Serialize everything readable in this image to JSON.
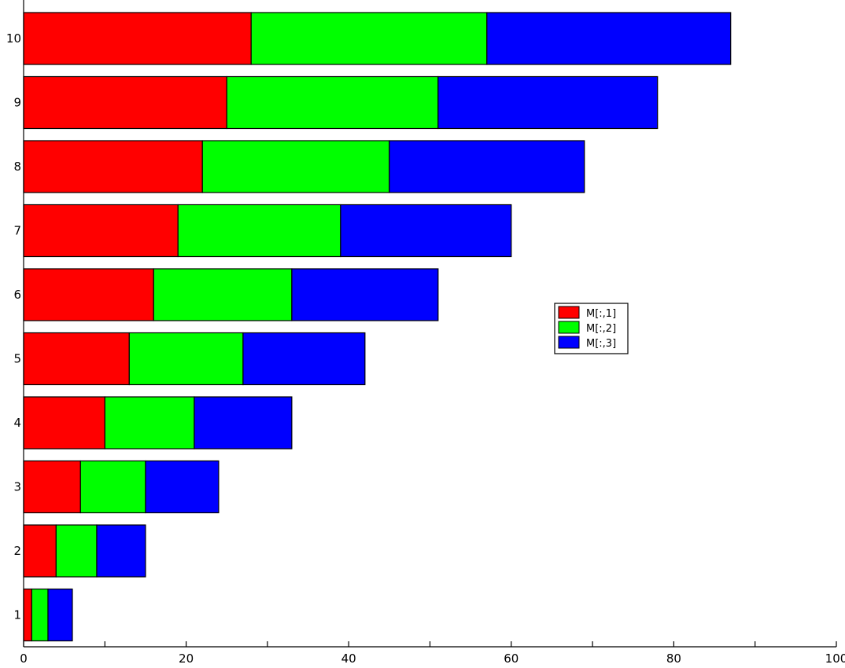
{
  "chart_data": {
    "type": "bar",
    "orientation": "horizontal",
    "stacked": true,
    "categories": [
      "1",
      "2",
      "3",
      "4",
      "5",
      "6",
      "7",
      "8",
      "9",
      "10"
    ],
    "series": [
      {
        "name": "M[:,1]",
        "color": "#ff0000",
        "values": [
          1,
          4,
          7,
          10,
          13,
          16,
          19,
          22,
          25,
          28
        ]
      },
      {
        "name": "M[:,2]",
        "color": "#00ff00",
        "values": [
          2,
          5,
          8,
          11,
          14,
          17,
          20,
          23,
          26,
          29
        ]
      },
      {
        "name": "M[:,3]",
        "color": "#0000ff",
        "values": [
          3,
          6,
          9,
          12,
          15,
          18,
          21,
          24,
          27,
          30
        ]
      }
    ],
    "x_ticks": [
      "0",
      "20",
      "40",
      "60",
      "80",
      "100"
    ],
    "x_tick_values": [
      0,
      20,
      40,
      60,
      80,
      100
    ],
    "xlim": [
      0,
      100
    ],
    "title": "",
    "xlabel": "",
    "ylabel": "",
    "grid": false,
    "legend_position": "center-right"
  }
}
